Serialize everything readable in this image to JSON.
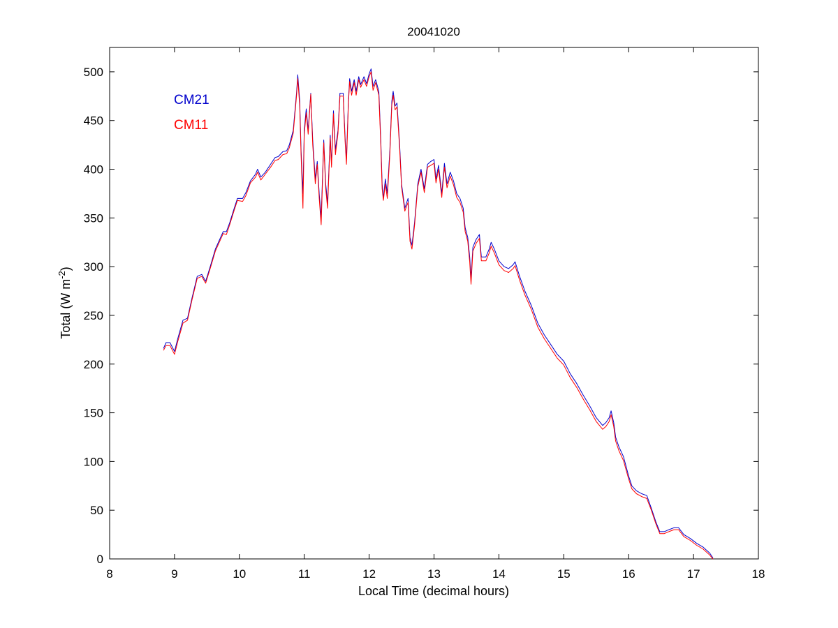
{
  "chart_data": {
    "type": "line",
    "title": "20041020",
    "xlabel": "Local Time (decimal hours)",
    "ylabel": "Total (W m",
    "ylabel_superscript": "-2",
    "ylabel_suffix": ")",
    "xlim": [
      8,
      18
    ],
    "ylim": [
      0,
      525
    ],
    "xticks": [
      8,
      9,
      10,
      11,
      12,
      13,
      14,
      15,
      16,
      17,
      18
    ],
    "yticks": [
      0,
      50,
      100,
      150,
      200,
      250,
      300,
      350,
      400,
      450,
      500
    ],
    "grid": false,
    "legend_placement": "top-left",
    "series": [
      {
        "name": "CM21",
        "color": "#0000cc",
        "points": [
          [
            8.83,
            216
          ],
          [
            8.87,
            222
          ],
          [
            8.93,
            222
          ],
          [
            9.0,
            213
          ],
          [
            9.05,
            226
          ],
          [
            9.13,
            245
          ],
          [
            9.2,
            247
          ],
          [
            9.27,
            268
          ],
          [
            9.35,
            290
          ],
          [
            9.42,
            292
          ],
          [
            9.48,
            285
          ],
          [
            9.55,
            300
          ],
          [
            9.63,
            318
          ],
          [
            9.75,
            336
          ],
          [
            9.8,
            336
          ],
          [
            9.85,
            345
          ],
          [
            9.92,
            360
          ],
          [
            9.97,
            370
          ],
          [
            10.05,
            370
          ],
          [
            10.1,
            376
          ],
          [
            10.17,
            388
          ],
          [
            10.25,
            395
          ],
          [
            10.28,
            400
          ],
          [
            10.33,
            392
          ],
          [
            10.4,
            397
          ],
          [
            10.48,
            405
          ],
          [
            10.55,
            412
          ],
          [
            10.6,
            413
          ],
          [
            10.67,
            418
          ],
          [
            10.73,
            419
          ],
          [
            10.77,
            425
          ],
          [
            10.83,
            440
          ],
          [
            10.88,
            478
          ],
          [
            10.9,
            497
          ],
          [
            10.93,
            470
          ],
          [
            10.95,
            420
          ],
          [
            10.98,
            375
          ],
          [
            11.0,
            440
          ],
          [
            11.03,
            462
          ],
          [
            11.06,
            440
          ],
          [
            11.1,
            478
          ],
          [
            11.13,
            430
          ],
          [
            11.17,
            390
          ],
          [
            11.2,
            408
          ],
          [
            11.23,
            375
          ],
          [
            11.26,
            350
          ],
          [
            11.3,
            430
          ],
          [
            11.33,
            385
          ],
          [
            11.36,
            365
          ],
          [
            11.4,
            435
          ],
          [
            11.42,
            405
          ],
          [
            11.45,
            460
          ],
          [
            11.48,
            420
          ],
          [
            11.52,
            440
          ],
          [
            11.55,
            478
          ],
          [
            11.6,
            478
          ],
          [
            11.63,
            432
          ],
          [
            11.65,
            410
          ],
          [
            11.68,
            470
          ],
          [
            11.7,
            493
          ],
          [
            11.73,
            480
          ],
          [
            11.77,
            492
          ],
          [
            11.8,
            480
          ],
          [
            11.84,
            495
          ],
          [
            11.87,
            487
          ],
          [
            11.92,
            495
          ],
          [
            11.96,
            488
          ],
          [
            12.0,
            498
          ],
          [
            12.03,
            503
          ],
          [
            12.06,
            485
          ],
          [
            12.1,
            492
          ],
          [
            12.15,
            480
          ],
          [
            12.18,
            430
          ],
          [
            12.2,
            385
          ],
          [
            12.22,
            370
          ],
          [
            12.25,
            390
          ],
          [
            12.28,
            375
          ],
          [
            12.32,
            420
          ],
          [
            12.35,
            470
          ],
          [
            12.37,
            480
          ],
          [
            12.4,
            465
          ],
          [
            12.43,
            468
          ],
          [
            12.47,
            425
          ],
          [
            12.5,
            385
          ],
          [
            12.55,
            360
          ],
          [
            12.6,
            370
          ],
          [
            12.63,
            330
          ],
          [
            12.66,
            322
          ],
          [
            12.7,
            345
          ],
          [
            12.75,
            385
          ],
          [
            12.8,
            400
          ],
          [
            12.85,
            380
          ],
          [
            12.9,
            405
          ],
          [
            12.95,
            408
          ],
          [
            13.0,
            410
          ],
          [
            13.03,
            390
          ],
          [
            13.07,
            404
          ],
          [
            13.12,
            375
          ],
          [
            13.16,
            406
          ],
          [
            13.2,
            385
          ],
          [
            13.25,
            397
          ],
          [
            13.3,
            388
          ],
          [
            13.35,
            375
          ],
          [
            13.4,
            370
          ],
          [
            13.45,
            360
          ],
          [
            13.48,
            340
          ],
          [
            13.52,
            330
          ],
          [
            13.55,
            310
          ],
          [
            13.57,
            288
          ],
          [
            13.6,
            320
          ],
          [
            13.65,
            328
          ],
          [
            13.7,
            333
          ],
          [
            13.73,
            310
          ],
          [
            13.8,
            310
          ],
          [
            13.85,
            318
          ],
          [
            13.88,
            325
          ],
          [
            13.93,
            318
          ],
          [
            14.0,
            306
          ],
          [
            14.08,
            300
          ],
          [
            14.15,
            298
          ],
          [
            14.22,
            302
          ],
          [
            14.25,
            305
          ],
          [
            14.32,
            290
          ],
          [
            14.4,
            275
          ],
          [
            14.5,
            260
          ],
          [
            14.6,
            242
          ],
          [
            14.7,
            230
          ],
          [
            14.8,
            220
          ],
          [
            14.9,
            210
          ],
          [
            15.0,
            203
          ],
          [
            15.1,
            190
          ],
          [
            15.2,
            180
          ],
          [
            15.3,
            168
          ],
          [
            15.4,
            157
          ],
          [
            15.5,
            145
          ],
          [
            15.6,
            137
          ],
          [
            15.65,
            140
          ],
          [
            15.7,
            145
          ],
          [
            15.73,
            152
          ],
          [
            15.77,
            140
          ],
          [
            15.8,
            125
          ],
          [
            15.85,
            115
          ],
          [
            15.92,
            105
          ],
          [
            16.0,
            85
          ],
          [
            16.05,
            75
          ],
          [
            16.12,
            70
          ],
          [
            16.2,
            67
          ],
          [
            16.28,
            65
          ],
          [
            16.35,
            52
          ],
          [
            16.42,
            38
          ],
          [
            16.48,
            28
          ],
          [
            16.55,
            28
          ],
          [
            16.62,
            30
          ],
          [
            16.7,
            32
          ],
          [
            16.77,
            32
          ],
          [
            16.85,
            25
          ],
          [
            16.95,
            21
          ],
          [
            17.05,
            16
          ],
          [
            17.15,
            12
          ],
          [
            17.25,
            6
          ],
          [
            17.3,
            1
          ]
        ]
      },
      {
        "name": "CM11",
        "color": "#ff0000",
        "points": [
          [
            8.83,
            214
          ],
          [
            8.87,
            219
          ],
          [
            8.93,
            219
          ],
          [
            9.0,
            210
          ],
          [
            9.05,
            223
          ],
          [
            9.13,
            242
          ],
          [
            9.2,
            245
          ],
          [
            9.27,
            266
          ],
          [
            9.35,
            288
          ],
          [
            9.42,
            290
          ],
          [
            9.48,
            283
          ],
          [
            9.55,
            298
          ],
          [
            9.63,
            316
          ],
          [
            9.75,
            334
          ],
          [
            9.8,
            333
          ],
          [
            9.85,
            343
          ],
          [
            9.92,
            358
          ],
          [
            9.97,
            368
          ],
          [
            10.05,
            367
          ],
          [
            10.1,
            373
          ],
          [
            10.17,
            386
          ],
          [
            10.25,
            392
          ],
          [
            10.28,
            397
          ],
          [
            10.33,
            389
          ],
          [
            10.4,
            395
          ],
          [
            10.48,
            402
          ],
          [
            10.55,
            409
          ],
          [
            10.6,
            410
          ],
          [
            10.67,
            415
          ],
          [
            10.73,
            416
          ],
          [
            10.77,
            422
          ],
          [
            10.83,
            437
          ],
          [
            10.88,
            475
          ],
          [
            10.9,
            493
          ],
          [
            10.93,
            465
          ],
          [
            10.95,
            415
          ],
          [
            10.98,
            360
          ],
          [
            11.0,
            436
          ],
          [
            11.03,
            458
          ],
          [
            11.06,
            436
          ],
          [
            11.1,
            477
          ],
          [
            11.13,
            425
          ],
          [
            11.17,
            385
          ],
          [
            11.2,
            405
          ],
          [
            11.23,
            370
          ],
          [
            11.26,
            343
          ],
          [
            11.3,
            427
          ],
          [
            11.33,
            380
          ],
          [
            11.36,
            360
          ],
          [
            11.4,
            432
          ],
          [
            11.42,
            402
          ],
          [
            11.45,
            457
          ],
          [
            11.48,
            415
          ],
          [
            11.52,
            437
          ],
          [
            11.55,
            475
          ],
          [
            11.6,
            475
          ],
          [
            11.63,
            428
          ],
          [
            11.65,
            405
          ],
          [
            11.68,
            467
          ],
          [
            11.7,
            490
          ],
          [
            11.73,
            476
          ],
          [
            11.77,
            489
          ],
          [
            11.8,
            476
          ],
          [
            11.84,
            492
          ],
          [
            11.87,
            484
          ],
          [
            11.92,
            492
          ],
          [
            11.96,
            485
          ],
          [
            12.0,
            495
          ],
          [
            12.03,
            500
          ],
          [
            12.06,
            481
          ],
          [
            12.1,
            489
          ],
          [
            12.15,
            476
          ],
          [
            12.18,
            425
          ],
          [
            12.2,
            380
          ],
          [
            12.22,
            368
          ],
          [
            12.25,
            385
          ],
          [
            12.28,
            370
          ],
          [
            12.32,
            416
          ],
          [
            12.35,
            466
          ],
          [
            12.37,
            476
          ],
          [
            12.4,
            461
          ],
          [
            12.43,
            464
          ],
          [
            12.47,
            421
          ],
          [
            12.5,
            382
          ],
          [
            12.55,
            357
          ],
          [
            12.6,
            366
          ],
          [
            12.63,
            326
          ],
          [
            12.66,
            318
          ],
          [
            12.7,
            342
          ],
          [
            12.75,
            382
          ],
          [
            12.8,
            397
          ],
          [
            12.85,
            376
          ],
          [
            12.9,
            402
          ],
          [
            12.95,
            404
          ],
          [
            13.0,
            406
          ],
          [
            13.03,
            386
          ],
          [
            13.07,
            400
          ],
          [
            13.12,
            371
          ],
          [
            13.16,
            402
          ],
          [
            13.2,
            381
          ],
          [
            13.25,
            393
          ],
          [
            13.3,
            384
          ],
          [
            13.35,
            371
          ],
          [
            13.4,
            366
          ],
          [
            13.45,
            356
          ],
          [
            13.48,
            336
          ],
          [
            13.52,
            326
          ],
          [
            13.55,
            305
          ],
          [
            13.57,
            282
          ],
          [
            13.6,
            316
          ],
          [
            13.65,
            324
          ],
          [
            13.7,
            329
          ],
          [
            13.73,
            306
          ],
          [
            13.8,
            306
          ],
          [
            13.85,
            314
          ],
          [
            13.88,
            321
          ],
          [
            13.93,
            314
          ],
          [
            14.0,
            302
          ],
          [
            14.08,
            296
          ],
          [
            14.15,
            294
          ],
          [
            14.22,
            298
          ],
          [
            14.25,
            301
          ],
          [
            14.32,
            286
          ],
          [
            14.4,
            271
          ],
          [
            14.5,
            256
          ],
          [
            14.6,
            238
          ],
          [
            14.7,
            226
          ],
          [
            14.8,
            216
          ],
          [
            14.9,
            206
          ],
          [
            15.0,
            199
          ],
          [
            15.1,
            186
          ],
          [
            15.2,
            176
          ],
          [
            15.3,
            164
          ],
          [
            15.4,
            153
          ],
          [
            15.5,
            141
          ],
          [
            15.6,
            133
          ],
          [
            15.65,
            136
          ],
          [
            15.7,
            141
          ],
          [
            15.73,
            148
          ],
          [
            15.77,
            136
          ],
          [
            15.8,
            121
          ],
          [
            15.85,
            111
          ],
          [
            15.92,
            101
          ],
          [
            16.0,
            82
          ],
          [
            16.05,
            72
          ],
          [
            16.12,
            67
          ],
          [
            16.2,
            64
          ],
          [
            16.28,
            62
          ],
          [
            16.35,
            50
          ],
          [
            16.42,
            36
          ],
          [
            16.48,
            26
          ],
          [
            16.55,
            26
          ],
          [
            16.62,
            28
          ],
          [
            16.7,
            30
          ],
          [
            16.77,
            30
          ],
          [
            16.85,
            23
          ],
          [
            16.95,
            19
          ],
          [
            17.05,
            14
          ],
          [
            17.15,
            10
          ],
          [
            17.25,
            4
          ],
          [
            17.3,
            0
          ]
        ]
      }
    ]
  }
}
